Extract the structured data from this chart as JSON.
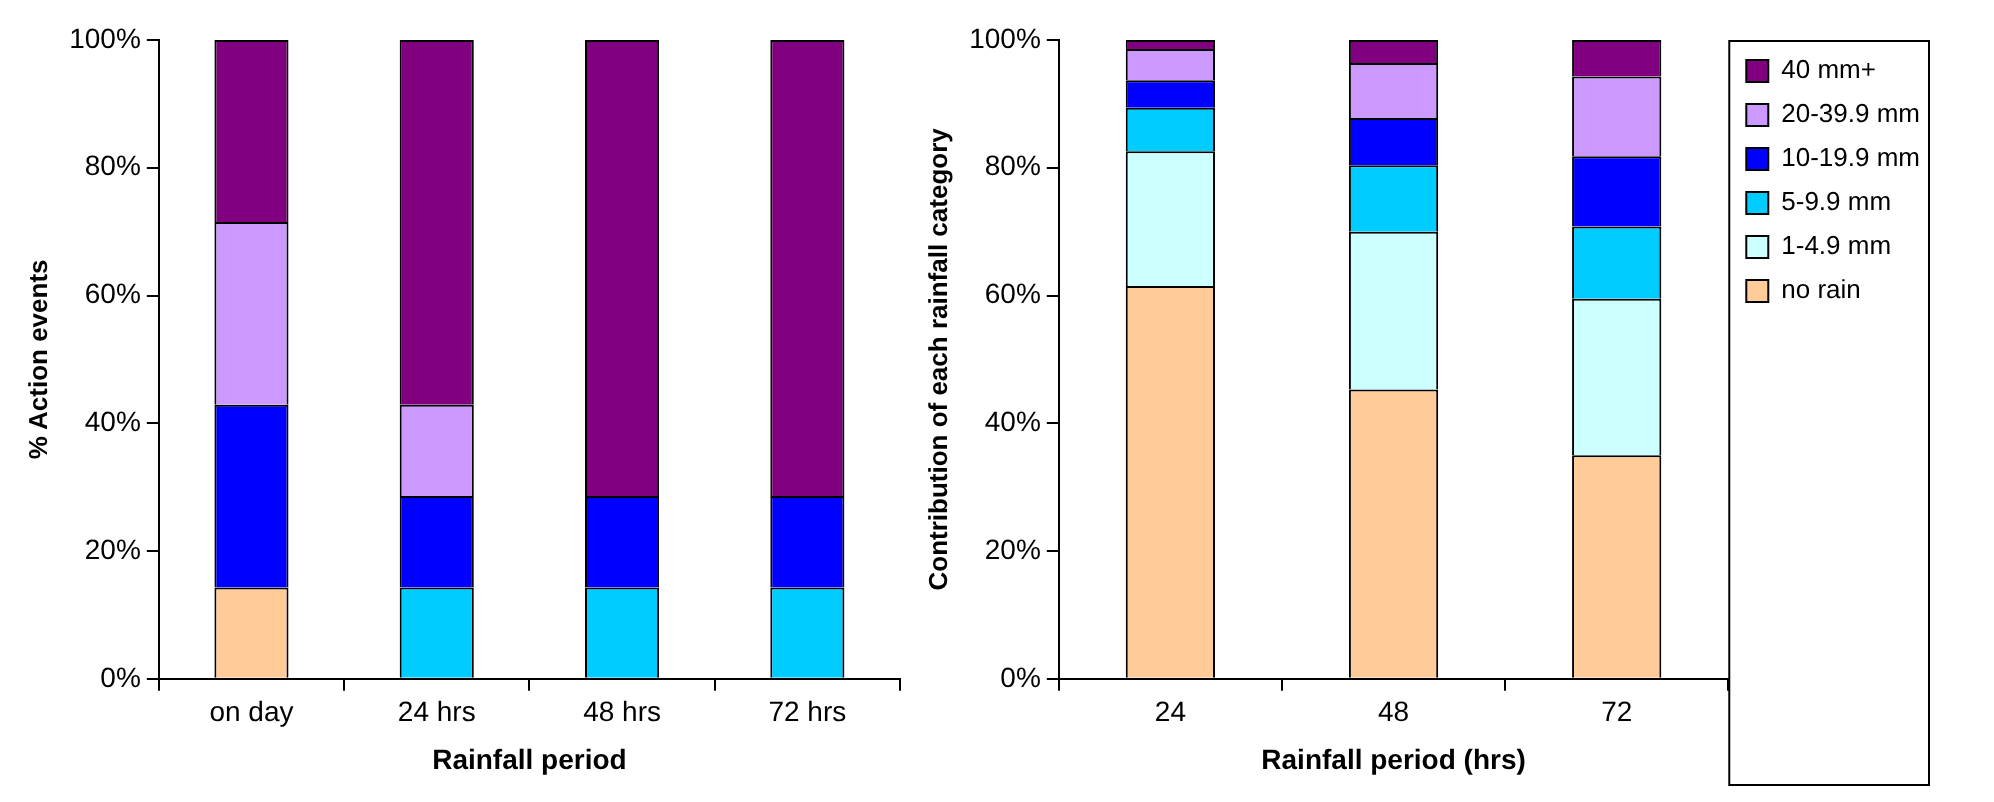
{
  "chart_data": [
    {
      "type": "bar",
      "stacked": true,
      "categories": [
        "on day",
        "24 hrs",
        "48 hrs",
        "72 hrs"
      ],
      "xlabel": "Rainfall period",
      "ylabel": "% Action events",
      "ylim": [
        0,
        100
      ],
      "yticks": [
        {
          "value": 0,
          "label": "0%"
        },
        {
          "value": 20,
          "label": "20%"
        },
        {
          "value": 40,
          "label": "40%"
        },
        {
          "value": 60,
          "label": "60%"
        },
        {
          "value": 80,
          "label": "80%"
        },
        {
          "value": 100,
          "label": "100%"
        }
      ],
      "grid": false,
      "legend": false,
      "series": [
        {
          "color": "#ffcc99",
          "values": [
            14.3,
            0,
            0,
            0
          ]
        },
        {
          "color": "#ccffff",
          "values": [
            0,
            0,
            0,
            0
          ]
        },
        {
          "color": "#00ccff",
          "values": [
            0,
            14.3,
            14.3,
            14.3
          ]
        },
        {
          "color": "#0000ff",
          "values": [
            28.6,
            14.3,
            14.3,
            14.3
          ]
        },
        {
          "color": "#cc99ff",
          "values": [
            28.6,
            14.3,
            0,
            0
          ]
        },
        {
          "color": "#800080",
          "values": [
            28.5,
            57.1,
            71.4,
            71.4
          ]
        }
      ]
    },
    {
      "type": "bar",
      "stacked": true,
      "categories": [
        "24",
        "48",
        "72"
      ],
      "xlabel": "Rainfall period (hrs)",
      "ylabel": "Contribution of each rainfall category",
      "ylim": [
        0,
        100
      ],
      "yticks": [
        {
          "value": 0,
          "label": "0%"
        },
        {
          "value": 20,
          "label": "20%"
        },
        {
          "value": 40,
          "label": "40%"
        },
        {
          "value": 60,
          "label": "60%"
        },
        {
          "value": 80,
          "label": "80%"
        },
        {
          "value": 100,
          "label": "100%"
        }
      ],
      "grid": false,
      "legend": "right",
      "series": [
        {
          "name": "no rain",
          "color": "#ffcc99",
          "values": [
            61.5,
            45.3,
            35.0
          ]
        },
        {
          "name": "1-4.9 mm",
          "color": "#ccffff",
          "values": [
            21.1,
            24.7,
            24.5
          ]
        },
        {
          "name": "5-9.9 mm",
          "color": "#00ccff",
          "values": [
            6.8,
            10.4,
            11.3
          ]
        },
        {
          "name": "10-19.9 mm",
          "color": "#0000ff",
          "values": [
            4.3,
            7.4,
            11.0
          ]
        },
        {
          "name": "20-39.9 mm",
          "color": "#cc99ff",
          "values": [
            4.9,
            8.6,
            12.5
          ]
        },
        {
          "name": "40 mm+",
          "color": "#800080",
          "values": [
            1.4,
            3.6,
            5.7
          ]
        }
      ]
    }
  ]
}
